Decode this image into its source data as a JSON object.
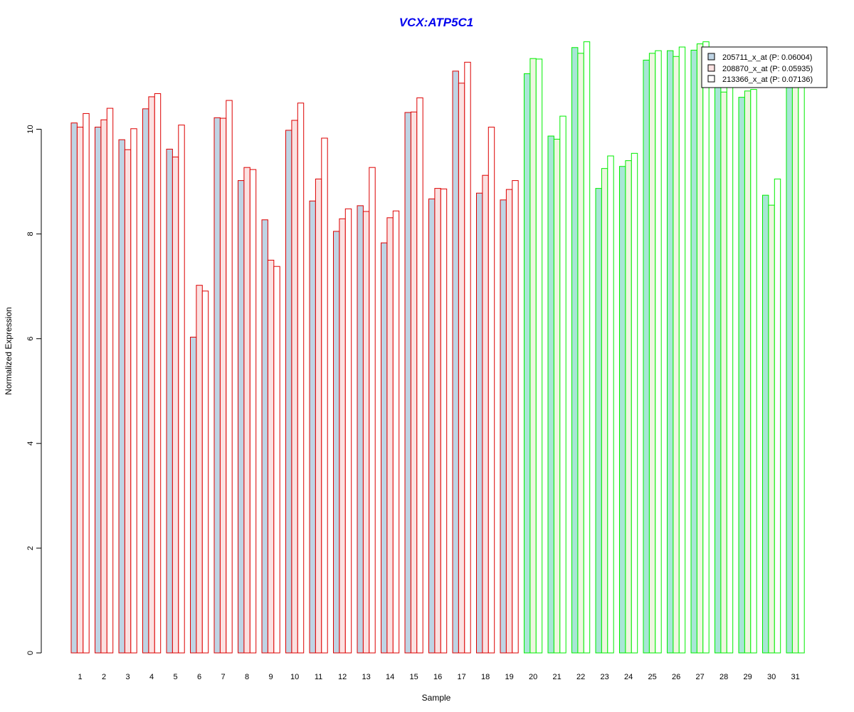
{
  "chart_data": {
    "type": "bar",
    "title": "VCX:ATP5C1",
    "title_color": "#0000ee",
    "xlabel": "Sample",
    "ylabel": "Normalized Expression",
    "ylim": [
      0,
      12
    ],
    "yticks": [
      0,
      2,
      4,
      6,
      8,
      10
    ],
    "grid": false,
    "legend_position": "top-right",
    "categories": [
      "1",
      "2",
      "3",
      "4",
      "5",
      "6",
      "7",
      "8",
      "9",
      "10",
      "11",
      "12",
      "13",
      "14",
      "15",
      "16",
      "17",
      "18",
      "19",
      "20",
      "21",
      "22",
      "23",
      "24",
      "25",
      "26",
      "27",
      "28",
      "29",
      "30",
      "31"
    ],
    "group_colors": {
      "red_border": "#dd0000",
      "green_border": "#00ee00",
      "first_bar_fill_red_group": "#bfd4e4",
      "first_bar_fill_green_group": "#a8e6d6",
      "second_bar_fill_red_group": "#fbe1e1",
      "second_bar_fill_green_group": "#eef6e0",
      "third_bar_fill_red_group": "#ffffff",
      "third_bar_fill_green_group": "#ffffff"
    },
    "green_group_start_sample": "20",
    "series": [
      {
        "name": "205711_x_at (P: 0.06004)",
        "legend_swatch": "#bfd4e4",
        "values": [
          10.12,
          10.04,
          9.8,
          10.39,
          9.62,
          6.03,
          10.22,
          9.02,
          8.27,
          9.98,
          8.63,
          8.05,
          8.54,
          7.83,
          10.32,
          8.67,
          11.11,
          8.78,
          8.65,
          11.06,
          9.87,
          11.56,
          8.87,
          9.29,
          11.32,
          11.5,
          11.51,
          11.5,
          10.61,
          8.74,
          11.17
        ]
      },
      {
        "name": "208870_x_at (P: 0.05935)",
        "legend_swatch": "#fbe1e1",
        "values": [
          10.04,
          10.18,
          9.61,
          10.62,
          9.47,
          7.02,
          10.21,
          9.27,
          7.5,
          10.17,
          9.05,
          8.29,
          8.43,
          8.31,
          10.33,
          8.87,
          10.88,
          9.12,
          8.85,
          11.35,
          9.81,
          11.45,
          9.25,
          9.4,
          11.45,
          11.39,
          11.63,
          10.71,
          10.73,
          8.55,
          11.45
        ]
      },
      {
        "name": "213366_x_at (P: 0.07136)",
        "legend_swatch": "#ffffff",
        "values": [
          10.3,
          10.4,
          10.01,
          10.68,
          10.08,
          6.91,
          10.55,
          9.23,
          7.38,
          10.5,
          9.83,
          8.48,
          9.27,
          8.44,
          10.6,
          8.86,
          11.28,
          10.04,
          9.02,
          11.34,
          10.25,
          11.67,
          9.49,
          9.54,
          11.5,
          11.57,
          11.67,
          11.3,
          10.76,
          9.05,
          11.4
        ]
      }
    ]
  }
}
